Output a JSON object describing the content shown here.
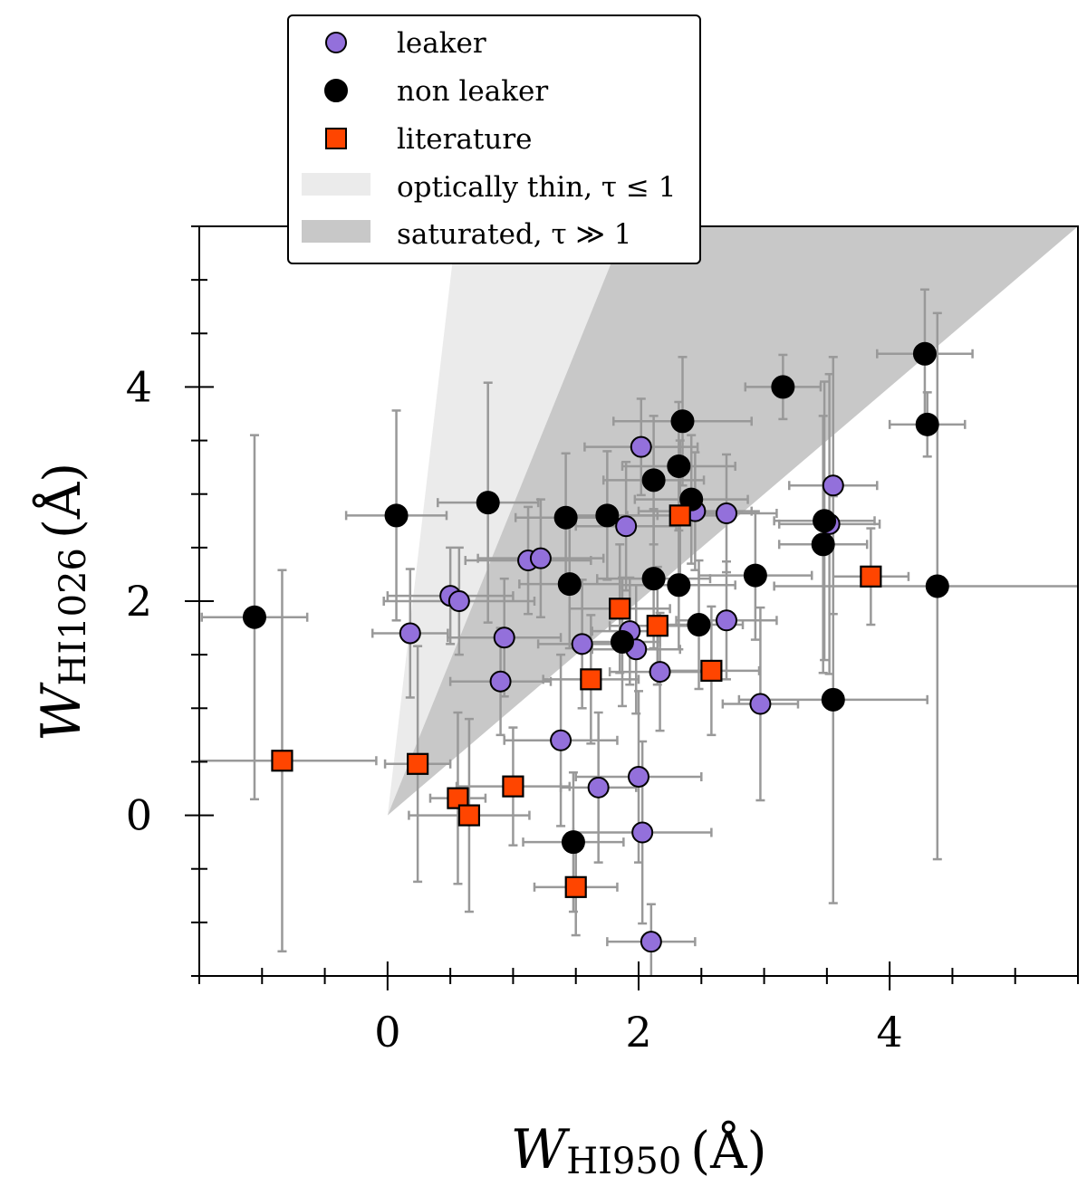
{
  "chart_data": {
    "type": "scatter",
    "xlabel": {
      "main": "W",
      "sub": "HI950",
      "unit": "(Å)"
    },
    "ylabel": {
      "main": "W",
      "sub": "HI1026",
      "unit": "(Å)"
    },
    "xlim": [
      -1.5,
      5.5
    ],
    "ylim": [
      -1.5,
      5.5
    ],
    "xticks": [
      0,
      2,
      4
    ],
    "yticks": [
      0,
      2,
      4
    ],
    "grid": false,
    "legend_position": "top-left, above plot",
    "colors": {
      "leaker": "#9370DB",
      "non_leaker": "#000000",
      "literature": "#FF4500",
      "errorbar": "#999999",
      "thin_region": "#EBEBEB",
      "saturated_region": "#C8C8C8"
    },
    "regions": [
      {
        "name": "optically thin",
        "legend": "optically thin, τ ≤ 1",
        "polygon": [
          [
            0,
            0
          ],
          [
            0.55,
            5.5
          ],
          [
            1.9,
            5.5
          ]
        ]
      },
      {
        "name": "saturated",
        "legend": "saturated, τ ≫ 1",
        "polygon": [
          [
            0,
            0
          ],
          [
            1.9,
            5.5
          ],
          [
            5.5,
            5.5
          ]
        ]
      }
    ],
    "series": [
      {
        "name": "leaker",
        "marker": "circle",
        "points": [
          {
            "x": 0.18,
            "y": 1.7,
            "xerr": 0.3,
            "yerr": 0.6
          },
          {
            "x": 0.5,
            "y": 2.05,
            "xerr": 0.5,
            "yerr": 0.45
          },
          {
            "x": 0.57,
            "y": 2.0,
            "xerr": 0.6,
            "yerr": 0.5
          },
          {
            "x": 0.9,
            "y": 1.25,
            "xerr": 0.4,
            "yerr": 0.5
          },
          {
            "x": 0.93,
            "y": 1.66,
            "xerr": 0.45,
            "yerr": 0.55
          },
          {
            "x": 1.12,
            "y": 2.38,
            "xerr": 0.5,
            "yerr": 0.5
          },
          {
            "x": 1.22,
            "y": 2.4,
            "xerr": 0.5,
            "yerr": 0.55
          },
          {
            "x": 1.38,
            "y": 0.7,
            "xerr": 0.45,
            "yerr": 0.8
          },
          {
            "x": 1.55,
            "y": 1.6,
            "xerr": 0.35,
            "yerr": 0.6
          },
          {
            "x": 1.68,
            "y": 0.26,
            "xerr": 0.3,
            "yerr": 0.7
          },
          {
            "x": 1.9,
            "y": 2.7,
            "xerr": 0.4,
            "yerr": 0.6
          },
          {
            "x": 1.93,
            "y": 1.72,
            "xerr": 0.3,
            "yerr": 0.5
          },
          {
            "x": 1.98,
            "y": 1.55,
            "xerr": 0.35,
            "yerr": 0.6
          },
          {
            "x": 2.02,
            "y": 3.44,
            "xerr": 0.45,
            "yerr": 0.45
          },
          {
            "x": 2.0,
            "y": 0.36,
            "xerr": 0.5,
            "yerr": 0.8
          },
          {
            "x": 2.03,
            "y": -0.16,
            "xerr": 0.55,
            "yerr": 0.85
          },
          {
            "x": 2.1,
            "y": -1.18,
            "xerr": 0.35,
            "yerr": 0.35
          },
          {
            "x": 2.17,
            "y": 1.34,
            "xerr": 0.4,
            "yerr": 0.55
          },
          {
            "x": 2.45,
            "y": 2.84,
            "xerr": 0.45,
            "yerr": 0.55
          },
          {
            "x": 2.7,
            "y": 2.82,
            "xerr": 0.4,
            "yerr": 0.55
          },
          {
            "x": 2.7,
            "y": 1.82,
            "xerr": 0.4,
            "yerr": 0.55
          },
          {
            "x": 2.97,
            "y": 1.04,
            "xerr": 0.3,
            "yerr": 0.9
          },
          {
            "x": 3.52,
            "y": 2.72,
            "xerr": 0.4,
            "yerr": 1.4
          },
          {
            "x": 3.55,
            "y": 3.08,
            "xerr": 0.35,
            "yerr": 1.2
          }
        ]
      },
      {
        "name": "non leaker",
        "marker": "circle",
        "points": [
          {
            "x": -1.06,
            "y": 1.85,
            "xerr": 0.42,
            "yerr": 1.7
          },
          {
            "x": 0.07,
            "y": 2.8,
            "xerr": 0.4,
            "yerr": 0.98
          },
          {
            "x": 0.8,
            "y": 2.92,
            "xerr": 0.4,
            "yerr": 1.12
          },
          {
            "x": 1.42,
            "y": 2.78,
            "xerr": 0.4,
            "yerr": 0.6
          },
          {
            "x": 1.45,
            "y": 2.16,
            "xerr": 0.4,
            "yerr": 0.6
          },
          {
            "x": 1.48,
            "y": -0.25,
            "xerr": 0.4,
            "yerr": 0.65
          },
          {
            "x": 1.75,
            "y": 2.8,
            "xerr": 0.4,
            "yerr": 0.6
          },
          {
            "x": 1.87,
            "y": 1.62,
            "xerr": 0.3,
            "yerr": 0.6
          },
          {
            "x": 2.12,
            "y": 3.13,
            "xerr": 0.4,
            "yerr": 0.6
          },
          {
            "x": 2.12,
            "y": 2.21,
            "xerr": 0.45,
            "yerr": 0.65
          },
          {
            "x": 2.32,
            "y": 3.26,
            "xerr": 0.45,
            "yerr": 0.6
          },
          {
            "x": 2.32,
            "y": 2.15,
            "xerr": 0.45,
            "yerr": 0.6
          },
          {
            "x": 2.35,
            "y": 3.68,
            "xerr": 0.55,
            "yerr": 0.6
          },
          {
            "x": 2.42,
            "y": 2.95,
            "xerr": 0.45,
            "yerr": 0.6
          },
          {
            "x": 2.48,
            "y": 1.78,
            "xerr": 0.35,
            "yerr": 0.6
          },
          {
            "x": 2.93,
            "y": 2.24,
            "xerr": 0.45,
            "yerr": 0.6
          },
          {
            "x": 3.15,
            "y": 4.0,
            "xerr": 0.3,
            "yerr": 0.3
          },
          {
            "x": 3.48,
            "y": 2.75,
            "xerr": 0.4,
            "yerr": 1.3
          },
          {
            "x": 3.47,
            "y": 2.53,
            "xerr": 0.35,
            "yerr": 1.2
          },
          {
            "x": 3.55,
            "y": 1.08,
            "xerr": 0.75,
            "yerr": 1.9
          },
          {
            "x": 4.28,
            "y": 4.31,
            "xerr": 0.38,
            "yerr": 0.6
          },
          {
            "x": 4.3,
            "y": 3.65,
            "xerr": 0.3,
            "yerr": 0.3
          },
          {
            "x": 4.38,
            "y": 2.14,
            "xerr": 1.3,
            "yerr": 2.55
          }
        ]
      },
      {
        "name": "literature",
        "marker": "square",
        "points": [
          {
            "x": -0.84,
            "y": 0.51,
            "xerr": 0.75,
            "yerr": 1.78
          },
          {
            "x": 0.24,
            "y": 0.48,
            "xerr": 0.26,
            "yerr": 1.1
          },
          {
            "x": 0.56,
            "y": 0.16,
            "xerr": 0.22,
            "yerr": 0.8
          },
          {
            "x": 0.65,
            "y": 0.0,
            "xerr": 0.48,
            "yerr": 0.9
          },
          {
            "x": 1.0,
            "y": 0.27,
            "xerr": 0.45,
            "yerr": 0.55
          },
          {
            "x": 1.5,
            "y": -0.67,
            "xerr": 0.33,
            "yerr": 0.45
          },
          {
            "x": 1.62,
            "y": 1.27,
            "xerr": 0.38,
            "yerr": 0.6
          },
          {
            "x": 1.85,
            "y": 1.93,
            "xerr": 0.4,
            "yerr": 0.6
          },
          {
            "x": 2.15,
            "y": 1.77,
            "xerr": 0.38,
            "yerr": 0.55
          },
          {
            "x": 2.33,
            "y": 2.8,
            "xerr": 0.42,
            "yerr": 0.7
          },
          {
            "x": 2.58,
            "y": 1.35,
            "xerr": 0.38,
            "yerr": 0.6
          },
          {
            "x": 3.85,
            "y": 2.23,
            "xerr": 0.3,
            "yerr": 0.45
          }
        ]
      }
    ],
    "legend": [
      {
        "label": "leaker",
        "key": "leaker"
      },
      {
        "label": "non leaker",
        "key": "non_leaker"
      },
      {
        "label": "literature",
        "key": "literature"
      },
      {
        "label": "optically thin, τ ≤ 1",
        "key": "thin_region"
      },
      {
        "label": "saturated,  τ ≫ 1",
        "key": "saturated_region"
      }
    ]
  }
}
